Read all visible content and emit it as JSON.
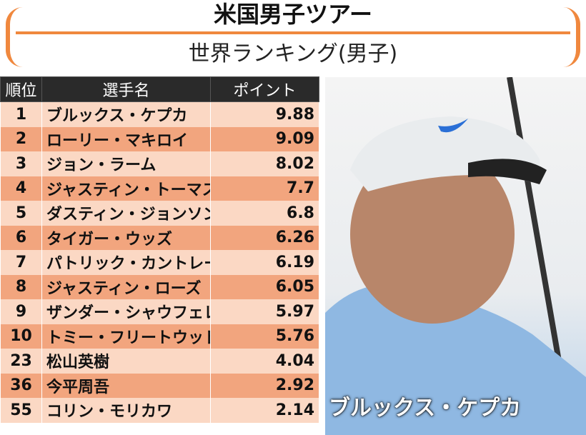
{
  "header": {
    "title": "米国男子ツアー",
    "subtitle": "世界ランキング(男子)"
  },
  "table": {
    "columns": [
      "順位",
      "選手名",
      "ポイント"
    ],
    "rows": [
      {
        "rank": "1",
        "name": "ブルックス・ケプカ",
        "points": "9.88"
      },
      {
        "rank": "2",
        "name": "ローリー・マキロイ",
        "points": "9.09"
      },
      {
        "rank": "3",
        "name": "ジョン・ラーム",
        "points": "8.02"
      },
      {
        "rank": "4",
        "name": "ジャスティン・トーマス",
        "points": "7.7"
      },
      {
        "rank": "5",
        "name": "ダスティン・ジョンソン",
        "points": "6.8"
      },
      {
        "rank": "6",
        "name": "タイガー・ウッズ",
        "points": "6.26"
      },
      {
        "rank": "7",
        "name": "パトリック・カントレー",
        "points": "6.19"
      },
      {
        "rank": "8",
        "name": "ジャスティン・ローズ",
        "points": "6.05"
      },
      {
        "rank": "9",
        "name": "ザンダー・シャウフェレ",
        "points": "5.97"
      },
      {
        "rank": "10",
        "name": "トミー・フリートウッド",
        "points": "5.76"
      },
      {
        "rank": "23",
        "name": "松山英樹",
        "points": "4.04"
      },
      {
        "rank": "36",
        "name": "今平周吾",
        "points": "2.92"
      },
      {
        "rank": "55",
        "name": "コリン・モリカワ",
        "points": "2.14"
      }
    ]
  },
  "photo": {
    "caption": "ブルックス・ケプカ"
  },
  "colors": {
    "accent": "#f0883e",
    "row_light": "#fbd8c4",
    "row_dark": "#f2a57e",
    "header_bg": "#2a2a2a"
  }
}
